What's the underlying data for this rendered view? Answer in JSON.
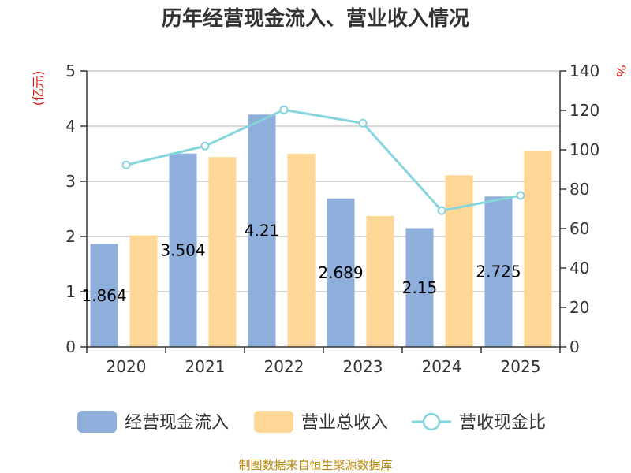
{
  "chart_data": {
    "type": "bar",
    "title": "历年经营现金流入、营业收入情况",
    "categories": [
      "2020",
      "2021",
      "2022",
      "2023",
      "2024",
      "2025"
    ],
    "left_unit": "(亿元)",
    "right_unit": "%",
    "ylim_left": [
      0,
      5
    ],
    "ylim_right": [
      0,
      140
    ],
    "left_ticks": [
      "0",
      "1",
      "2",
      "3",
      "4",
      "5"
    ],
    "right_ticks": [
      "0",
      "20",
      "40",
      "60",
      "80",
      "100",
      "120",
      "140"
    ],
    "grid": true,
    "legend_position": "bottom",
    "series": [
      {
        "name": "经营现金流入",
        "kind": "bar",
        "axis": "left",
        "color": "#8eaedb",
        "values": [
          1.864,
          3.504,
          4.21,
          2.689,
          2.15,
          2.725
        ],
        "labels": [
          "1.864",
          "3.504",
          "4.21",
          "2.689",
          "2.15",
          "2.725"
        ]
      },
      {
        "name": "营业总收入",
        "kind": "bar",
        "axis": "left",
        "color": "#fed797",
        "values": [
          2.02,
          3.44,
          3.5,
          2.37,
          3.11,
          3.55
        ]
      },
      {
        "name": "营收现金比",
        "kind": "line",
        "axis": "right",
        "color": "#86d4dc",
        "values": [
          92.3,
          101.9,
          120.3,
          113.5,
          69.1,
          76.8
        ]
      }
    ]
  },
  "source": "制图数据来自恒生聚源数据库"
}
